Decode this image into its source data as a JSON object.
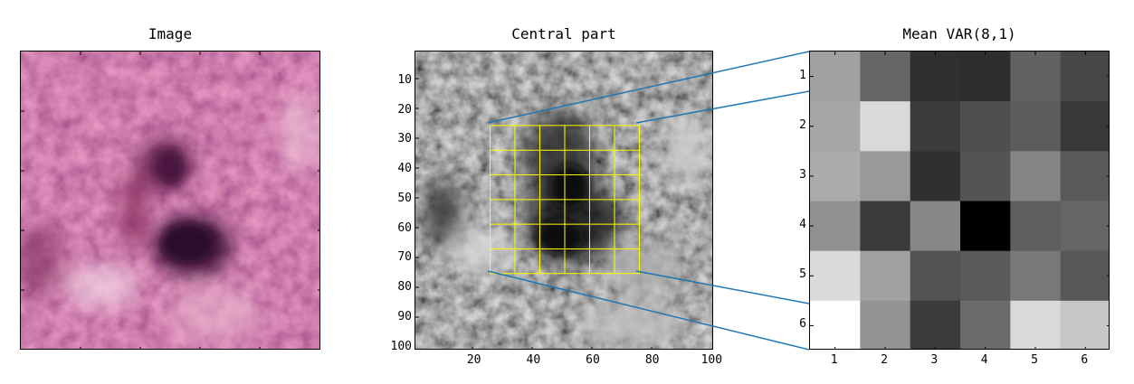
{
  "titles": {
    "image": "Image",
    "central": "Central part",
    "mean_var": "Mean VAR(8,1)"
  },
  "colors": {
    "grid": "#ffff00",
    "connector": "#1f77b4",
    "tissue_pink": "#c8507a",
    "tissue_dark": "#3a1030"
  },
  "chart_data": [
    {
      "type": "image",
      "title": "Image",
      "description_visible": "H&E stained tissue patch, pink with dark purple nucleus region",
      "xticks": [],
      "yticks": []
    },
    {
      "type": "image",
      "title": "Central part",
      "xlim": [
        0,
        100
      ],
      "ylim": [
        100,
        0
      ],
      "xticks": [
        20,
        40,
        60,
        80,
        100
      ],
      "yticks": [
        10,
        20,
        30,
        40,
        50,
        60,
        70,
        80,
        90,
        100
      ],
      "grid_overlay": {
        "x_range": [
          25,
          75
        ],
        "y_range": [
          25,
          75
        ],
        "cells": 6
      }
    },
    {
      "type": "heatmap",
      "title": "Mean VAR(8,1)",
      "xticks": [
        1,
        2,
        3,
        4,
        5,
        6
      ],
      "yticks": [
        1,
        2,
        3,
        4,
        5,
        6
      ],
      "colormap": "gray",
      "values": [
        [
          0.63,
          0.4,
          0.19,
          0.18,
          0.38,
          0.28
        ],
        [
          0.65,
          0.85,
          0.23,
          0.31,
          0.36,
          0.22
        ],
        [
          0.67,
          0.6,
          0.19,
          0.33,
          0.52,
          0.35
        ],
        [
          0.57,
          0.23,
          0.53,
          0.0,
          0.37,
          0.4
        ],
        [
          0.86,
          0.63,
          0.32,
          0.35,
          0.47,
          0.34
        ],
        [
          1.0,
          0.58,
          0.23,
          0.42,
          0.85,
          0.78
        ]
      ]
    }
  ]
}
